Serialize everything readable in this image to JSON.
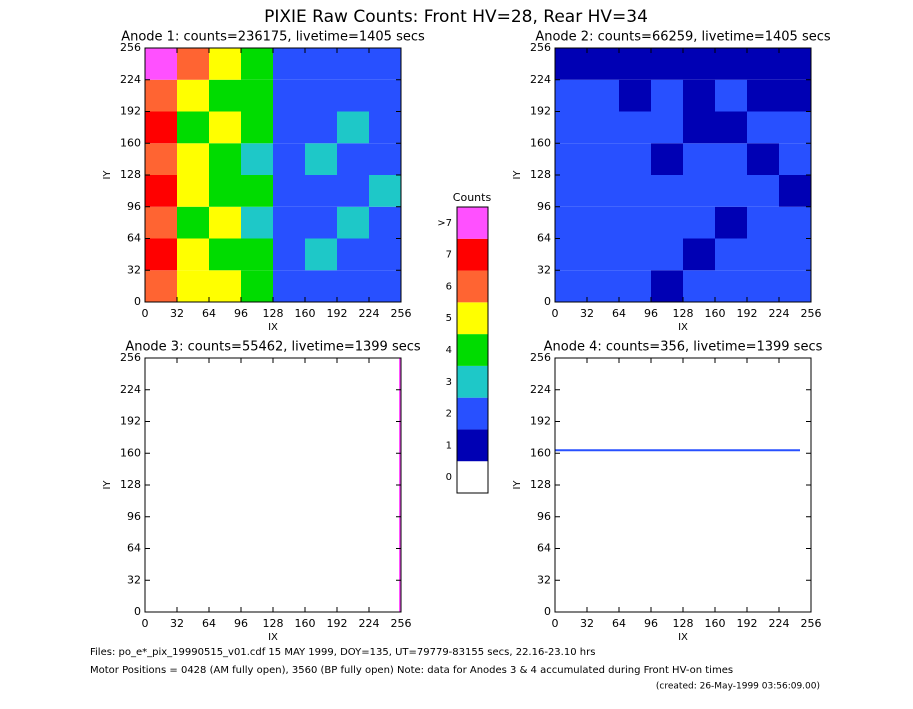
{
  "title": "PIXIE Raw Counts:  Front HV=28, Rear HV=34",
  "colorbar": {
    "title": "Counts",
    "labels": [
      "0",
      "1",
      "2",
      "3",
      "4",
      "5",
      "6",
      "7",
      ">7"
    ],
    "colors": [
      "#ffffff",
      "#0000b4",
      "#2850ff",
      "#1ec8c8",
      "#00dc00",
      "#ffff00",
      "#ff6432",
      "#ff0000",
      "#ff50ff"
    ]
  },
  "chart_data": [
    {
      "type": "heatmap",
      "title": "Anode 1: counts=236175, livetime=1405 secs",
      "xlabel": "IX",
      "ylabel": "IY",
      "xlim": [
        0,
        256
      ],
      "ylim": [
        0,
        256
      ],
      "xticks": [
        0,
        32,
        64,
        96,
        128,
        160,
        192,
        224,
        256
      ],
      "yticks": [
        0,
        32,
        64,
        96,
        128,
        160,
        192,
        224,
        256
      ],
      "x_bins": [
        0,
        32,
        64,
        96,
        128,
        160,
        192,
        224,
        256
      ],
      "y_bins": [
        0,
        32,
        64,
        96,
        128,
        160,
        192,
        224,
        256
      ],
      "z": [
        [
          6,
          5,
          5,
          4,
          2,
          2,
          2,
          2
        ],
        [
          7,
          5,
          4,
          4,
          2,
          3,
          2,
          2
        ],
        [
          6,
          4,
          5,
          3,
          2,
          2,
          3,
          2
        ],
        [
          7,
          5,
          4,
          4,
          2,
          2,
          2,
          3
        ],
        [
          6,
          5,
          4,
          3,
          2,
          3,
          2,
          2
        ],
        [
          7,
          4,
          5,
          4,
          2,
          2,
          3,
          2
        ],
        [
          6,
          5,
          4,
          4,
          2,
          2,
          2,
          2
        ],
        [
          8,
          6,
          5,
          4,
          2,
          2,
          2,
          2
        ]
      ]
    },
    {
      "type": "heatmap",
      "title": "Anode 2: counts=66259, livetime=1405 secs",
      "xlabel": "IX",
      "ylabel": "IY",
      "xlim": [
        0,
        256
      ],
      "ylim": [
        0,
        256
      ],
      "xticks": [
        0,
        32,
        64,
        96,
        128,
        160,
        192,
        224,
        256
      ],
      "yticks": [
        0,
        32,
        64,
        96,
        128,
        160,
        192,
        224,
        256
      ],
      "x_bins": [
        0,
        32,
        64,
        96,
        128,
        160,
        192,
        224,
        256
      ],
      "y_bins": [
        0,
        32,
        64,
        96,
        128,
        160,
        192,
        224,
        256
      ],
      "z": [
        [
          2,
          2,
          2,
          1,
          2,
          2,
          2,
          2
        ],
        [
          2,
          2,
          2,
          2,
          1,
          2,
          2,
          2
        ],
        [
          2,
          2,
          2,
          2,
          2,
          1,
          2,
          2
        ],
        [
          2,
          2,
          2,
          2,
          2,
          2,
          2,
          1
        ],
        [
          2,
          2,
          2,
          1,
          2,
          2,
          1,
          2
        ],
        [
          2,
          2,
          2,
          2,
          1,
          1,
          2,
          2
        ],
        [
          2,
          2,
          1,
          2,
          1,
          2,
          1,
          1
        ],
        [
          1,
          1,
          1,
          1,
          1,
          1,
          1,
          1
        ]
      ]
    },
    {
      "type": "line",
      "title": "Anode 3: counts=55462, livetime=1399 secs",
      "xlabel": "IX",
      "ylabel": "IY",
      "xlim": [
        0,
        256
      ],
      "ylim": [
        0,
        256
      ],
      "xticks": [
        0,
        32,
        64,
        96,
        128,
        160,
        192,
        224,
        256
      ],
      "yticks": [
        0,
        32,
        64,
        96,
        128,
        160,
        192,
        224,
        256
      ],
      "x": [
        255,
        255
      ],
      "y": [
        0,
        256
      ],
      "color": "#ff50ff"
    },
    {
      "type": "line",
      "title": "Anode 4: counts=356, livetime=1399 secs",
      "xlabel": "IX",
      "ylabel": "IY",
      "xlim": [
        0,
        256
      ],
      "ylim": [
        0,
        256
      ],
      "xticks": [
        0,
        32,
        64,
        96,
        128,
        160,
        192,
        224,
        256
      ],
      "yticks": [
        0,
        32,
        64,
        96,
        128,
        160,
        192,
        224,
        256
      ],
      "x": [
        0,
        245
      ],
      "y": [
        163,
        163
      ],
      "color": "#2850ff"
    }
  ],
  "footer": [
    "Files: po_e*_pix_19990515_v01.cdf    15 MAY 1999, DOY=135, UT=79779-83155 secs, 22.16-23.10 hrs",
    "Motor Positions = 0428 (AM fully open), 3560 (BP fully open)    Note: data for Anodes 3 & 4 accumulated during Front HV-on times",
    "(created: 26-May-1999 03:56:09.00)"
  ]
}
